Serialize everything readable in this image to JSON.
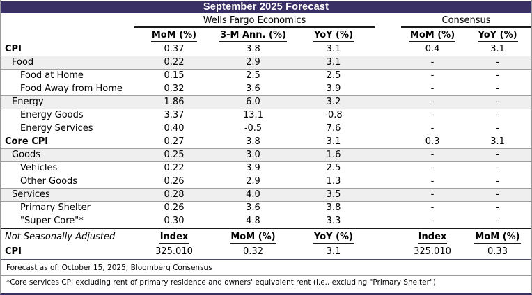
{
  "title": "September 2025 Forecast",
  "table": {
    "group_headers": {
      "wells_fargo": "Wells Fargo Economics",
      "consensus": "Consensus"
    },
    "column_headers": [
      "MoM (%)",
      "3-M Ann. (%)",
      "YoY (%)",
      "MoM (%)",
      "YoY (%)"
    ],
    "rows": [
      {
        "label": "CPI",
        "level": 0,
        "bold": true,
        "shaded": false,
        "values": [
          "0.37",
          "3.8",
          "3.1",
          "0.4",
          "3.1"
        ]
      },
      {
        "label": "Food",
        "level": 1,
        "bold": false,
        "shaded": true,
        "values": [
          "0.22",
          "2.9",
          "3.1",
          "-",
          "-"
        ]
      },
      {
        "label": "Food at Home",
        "level": 2,
        "bold": false,
        "shaded": false,
        "values": [
          "0.15",
          "2.5",
          "2.5",
          "-",
          "-"
        ]
      },
      {
        "label": "Food Away from Home",
        "level": 2,
        "bold": false,
        "shaded": false,
        "values": [
          "0.32",
          "3.6",
          "3.9",
          "-",
          "-"
        ]
      },
      {
        "label": "Energy",
        "level": 1,
        "bold": false,
        "shaded": true,
        "values": [
          "1.86",
          "6.0",
          "3.2",
          "-",
          "-"
        ]
      },
      {
        "label": "Energy Goods",
        "level": 2,
        "bold": false,
        "shaded": false,
        "values": [
          "3.37",
          "13.1",
          "-0.8",
          "-",
          "-"
        ]
      },
      {
        "label": "Energy Services",
        "level": 2,
        "bold": false,
        "shaded": false,
        "values": [
          "0.40",
          "-0.5",
          "7.6",
          "-",
          "-"
        ]
      },
      {
        "label": "Core CPI",
        "level": 0,
        "bold": true,
        "shaded": false,
        "values": [
          "0.27",
          "3.8",
          "3.1",
          "0.3",
          "3.1"
        ]
      },
      {
        "label": "Goods",
        "level": 1,
        "bold": false,
        "shaded": true,
        "values": [
          "0.25",
          "3.0",
          "1.6",
          "-",
          "-"
        ]
      },
      {
        "label": "Vehicles",
        "level": 2,
        "bold": false,
        "shaded": false,
        "values": [
          "0.22",
          "3.9",
          "2.5",
          "-",
          "-"
        ]
      },
      {
        "label": "Other Goods",
        "level": 2,
        "bold": false,
        "shaded": false,
        "values": [
          "0.26",
          "2.9",
          "1.3",
          "-",
          "-"
        ]
      },
      {
        "label": "Services",
        "level": 1,
        "bold": false,
        "shaded": true,
        "values": [
          "0.28",
          "4.0",
          "3.5",
          "-",
          "-"
        ]
      },
      {
        "label": "Primary Shelter",
        "level": 2,
        "bold": false,
        "shaded": false,
        "values": [
          "0.26",
          "3.6",
          "3.8",
          "-",
          "-"
        ]
      },
      {
        "label": "\"Super Core\"*",
        "level": 2,
        "bold": false,
        "shaded": false,
        "values": [
          "0.30",
          "4.8",
          "3.3",
          "-",
          "-"
        ]
      }
    ]
  },
  "nsa": {
    "section_label": "Not Seasonally Adjusted",
    "column_headers": [
      "Index",
      "MoM (%)",
      "YoY (%)",
      "Index",
      "MoM (%)"
    ],
    "row": {
      "label": "CPI",
      "values": [
        "325.010",
        "0.32",
        "3.1",
        "325.010",
        "0.33"
      ]
    }
  },
  "footnotes": [
    "Forecast as of: October 15, 2025; Bloomberg Consensus",
    "*Core services CPI excluding rent of primary residence and owners' equivalent rent (i.e., excluding \"Primary Shelter\")"
  ],
  "colors": {
    "title_bar": "#3a3066",
    "title_text": "#ffffff",
    "shaded_row": "#efefef",
    "rule_gray": "#a0a0a0",
    "rule_dark": "#1a1a1a",
    "nsa_bottom_rule": "#4c4c60",
    "bottom_border": "#3a3066"
  }
}
